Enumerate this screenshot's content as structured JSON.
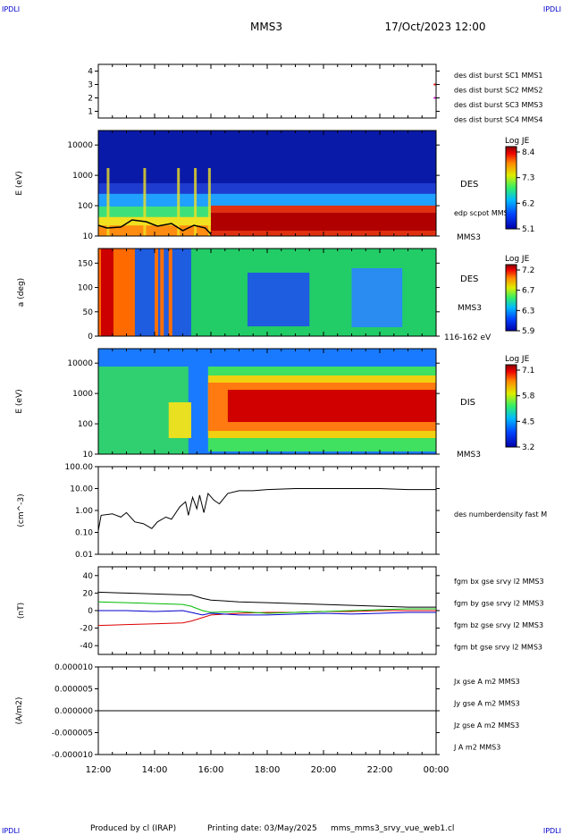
{
  "header": {
    "corner_tl": "IPDLI",
    "corner_tr": "IPDLI",
    "corner_bl": "IPDLI",
    "corner_br": "IPDLI",
    "mission": "MMS3",
    "datetime": "17/Oct/2023 12:00"
  },
  "footer": {
    "produced": "Produced by cl (IRAP)",
    "printing": "Printing date: 03/May/2025",
    "filename": "mms_mms3_srvy_vue_web1.cl"
  },
  "colors": {
    "mms1": "#0000cc",
    "mms2": "#cc00cc",
    "mms3": "#dd0000",
    "mms4": "#00bb00",
    "bx": "#dd0000",
    "by": "#00bb00",
    "bz": "#0000cc",
    "bt": "#000000",
    "corner": "#0000cc"
  },
  "time_axis": {
    "ticks": [
      "12:00",
      "14:00",
      "16:00",
      "18:00",
      "20:00",
      "22:00",
      "00:00"
    ]
  },
  "chart_data": [
    {
      "type": "scatter",
      "panel": "burst",
      "ylim": [
        0.5,
        4.5
      ],
      "yticks": [
        "4",
        "3",
        "2",
        "1"
      ],
      "legend": [
        "des dist burst SC1 MMS1",
        "des dist burst SC2 MMS2",
        "des dist burst SC3 MMS3",
        "des dist burst SC4 MMS4"
      ],
      "legend_placement": "right",
      "points": [
        {
          "t": 23.95,
          "sc": 3
        },
        {
          "t": 23.95,
          "sc": 2
        }
      ]
    },
    {
      "type": "heatmap",
      "panel": "des-energy",
      "ylabel": "E (eV)",
      "yscale": "log",
      "ylim": [
        10,
        30000
      ],
      "yticks": [
        "10000",
        "1000",
        "100",
        "10"
      ],
      "right_labels": [
        "DES",
        "edp scpot MMS3",
        "MMS3"
      ],
      "colorbar": {
        "title": "Log JE",
        "ticks": [
          "8.4",
          "7.3",
          "6.2",
          "5.1"
        ],
        "range": [
          5.1,
          8.4
        ]
      },
      "overlay_series": "edp scpot MMS3"
    },
    {
      "type": "heatmap",
      "panel": "des-pitch",
      "ylabel": "a (deg)",
      "ylim": [
        0,
        180
      ],
      "yticks": [
        "150",
        "100",
        "50",
        "0"
      ],
      "right_labels": [
        "DES",
        "MMS3",
        "116-162 eV"
      ],
      "colorbar": {
        "title": "Log JE",
        "ticks": [
          "7.2",
          "6.7",
          "6.3",
          "5.9"
        ],
        "range": [
          5.9,
          7.2
        ]
      }
    },
    {
      "type": "heatmap",
      "panel": "dis-energy",
      "ylabel": "E (eV)",
      "yscale": "log",
      "ylim": [
        10,
        30000
      ],
      "yticks": [
        "10000",
        "1000",
        "100",
        "10"
      ],
      "right_labels": [
        "DIS",
        "MMS3"
      ],
      "colorbar": {
        "title": "Log JE",
        "ticks": [
          "7.1",
          "5.8",
          "4.5",
          "3.2"
        ],
        "range": [
          3.2,
          7.1
        ]
      }
    },
    {
      "type": "line",
      "panel": "density",
      "ylabel": "(cm^-3)",
      "yscale": "log",
      "ylim": [
        0.01,
        100
      ],
      "yticks": [
        "100.00",
        "10.00",
        "1.00",
        "0.10",
        "0.01"
      ],
      "series": [
        {
          "name": "des numberdensity fast M",
          "points": [
            [
              12.0,
              0.12
            ],
            [
              12.1,
              0.6
            ],
            [
              12.5,
              0.7
            ],
            [
              12.8,
              0.5
            ],
            [
              13.0,
              0.8
            ],
            [
              13.3,
              0.3
            ],
            [
              13.6,
              0.25
            ],
            [
              13.9,
              0.15
            ],
            [
              14.1,
              0.3
            ],
            [
              14.4,
              0.5
            ],
            [
              14.6,
              0.4
            ],
            [
              14.9,
              1.5
            ],
            [
              15.1,
              2.5
            ],
            [
              15.2,
              0.6
            ],
            [
              15.35,
              4
            ],
            [
              15.5,
              1.2
            ],
            [
              15.6,
              5
            ],
            [
              15.75,
              0.8
            ],
            [
              15.9,
              6
            ],
            [
              16.1,
              3
            ],
            [
              16.3,
              2
            ],
            [
              16.6,
              6
            ],
            [
              17.0,
              8
            ],
            [
              17.5,
              8
            ],
            [
              18.0,
              9
            ],
            [
              19.0,
              10
            ],
            [
              20.0,
              10
            ],
            [
              21.0,
              10
            ],
            [
              22.0,
              10
            ],
            [
              23.0,
              9
            ],
            [
              24.0,
              9
            ]
          ]
        }
      ]
    },
    {
      "type": "line",
      "panel": "fgm",
      "ylabel": "(nT)",
      "ylim": [
        -50,
        50
      ],
      "yticks": [
        "40",
        "20",
        "0",
        "-20",
        "-40"
      ],
      "series": [
        {
          "name": "fgm bx gse srvy l2 MMS3",
          "points": [
            [
              12,
              -17
            ],
            [
              13,
              -16
            ],
            [
              14,
              -15
            ],
            [
              15,
              -14
            ],
            [
              15.3,
              -12
            ],
            [
              15.7,
              -8
            ],
            [
              16,
              -5
            ],
            [
              17,
              -3
            ],
            [
              18,
              -2
            ],
            [
              19,
              -2
            ],
            [
              20,
              -1
            ],
            [
              21,
              -1
            ],
            [
              22,
              0
            ],
            [
              23,
              0
            ],
            [
              24,
              0
            ]
          ]
        },
        {
          "name": "fgm by gse srvy l2 MMS3",
          "points": [
            [
              12,
              10
            ],
            [
              13,
              9
            ],
            [
              14,
              8
            ],
            [
              15,
              7
            ],
            [
              15.3,
              5
            ],
            [
              15.7,
              0
            ],
            [
              16,
              -2
            ],
            [
              17,
              -1
            ],
            [
              18,
              -3
            ],
            [
              19,
              -2
            ],
            [
              20,
              -1
            ],
            [
              21,
              0
            ],
            [
              22,
              1
            ],
            [
              23,
              2
            ],
            [
              24,
              2
            ]
          ]
        },
        {
          "name": "fgm bz gse srvy l2 MMS3",
          "points": [
            [
              12,
              0
            ],
            [
              13,
              0
            ],
            [
              14,
              -1
            ],
            [
              15,
              0
            ],
            [
              15.3,
              -2
            ],
            [
              15.7,
              -5
            ],
            [
              16,
              -3
            ],
            [
              17,
              -5
            ],
            [
              18,
              -5
            ],
            [
              19,
              -4
            ],
            [
              20,
              -3
            ],
            [
              21,
              -4
            ],
            [
              22,
              -3
            ],
            [
              23,
              -2
            ],
            [
              24,
              -2
            ]
          ]
        },
        {
          "name": "fgm bt gse srvy l2 MMS3",
          "points": [
            [
              12,
              21
            ],
            [
              13,
              20
            ],
            [
              14,
              19
            ],
            [
              15,
              18
            ],
            [
              15.3,
              18
            ],
            [
              15.7,
              14
            ],
            [
              16,
              12
            ],
            [
              17,
              10
            ],
            [
              18,
              9
            ],
            [
              19,
              8
            ],
            [
              20,
              7
            ],
            [
              21,
              6
            ],
            [
              22,
              5
            ],
            [
              23,
              4
            ],
            [
              24,
              4
            ]
          ]
        }
      ]
    },
    {
      "type": "line",
      "panel": "current",
      "ylabel": "(A/m2)",
      "ylim": [
        -1e-05,
        1e-05
      ],
      "yticks": [
        "0.000010",
        "0.000005",
        "0.000000",
        "-0.000005",
        "-0.000010"
      ],
      "series": [
        {
          "name": "Jx gse A m2 MMS3",
          "points": [
            [
              12,
              0
            ],
            [
              24,
              0
            ]
          ]
        },
        {
          "name": "Jy gse A m2 MMS3",
          "points": [
            [
              12,
              0
            ],
            [
              24,
              0
            ]
          ]
        },
        {
          "name": "Jz gse A m2 MMS3",
          "points": [
            [
              12,
              0
            ],
            [
              24,
              0
            ]
          ]
        },
        {
          "name": "J A m2 MMS3",
          "points": [
            [
              12,
              0
            ],
            [
              24,
              0
            ]
          ]
        }
      ]
    }
  ]
}
